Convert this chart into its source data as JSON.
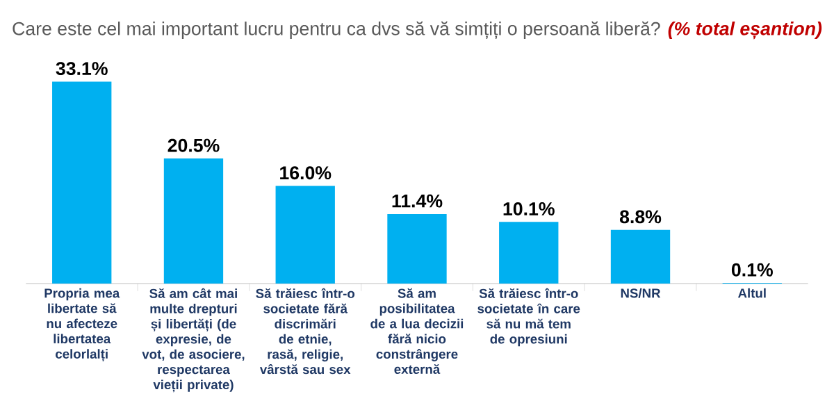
{
  "chart_data": {
    "type": "bar",
    "title": "Care este cel mai important lucru pentru ca dvs să vă simțiți o persoană liberă?",
    "subtitle": "(% total eșantion)",
    "categories": [
      "Propria mea libertate să nu afecteze libertatea celorlalți",
      "Să am cât mai multe drepturi și libertăți (de expresie, de vot, de asociere, respectarea vieții private)",
      "Să trăiesc într-o societate fără discrimări de etnie, rasă, religie, vârstă sau sex",
      "Să am posibilitatea de a lua decizii fără nicio constrângere externă",
      "Să trăiesc într-o societate în care să nu mă tem de opresiuni",
      "NS/NR",
      "Altul"
    ],
    "values": [
      33.1,
      20.5,
      16.0,
      11.4,
      10.1,
      8.8,
      0.1
    ],
    "value_labels": [
      "33.1%",
      "20.5%",
      "16.0%",
      "11.4%",
      "10.1%",
      "8.8%",
      "0.1%"
    ],
    "color": "#00b0f0"
  }
}
